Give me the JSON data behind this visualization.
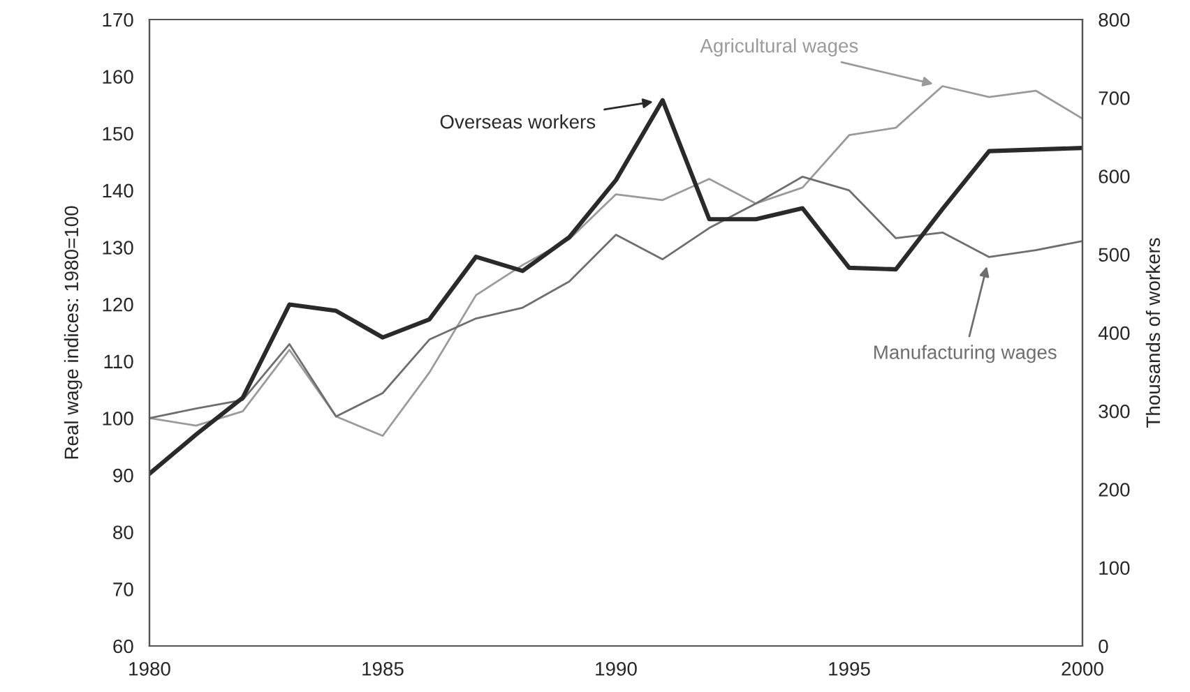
{
  "chart_data": {
    "type": "line",
    "x": [
      1980,
      1981,
      1982,
      1983,
      1984,
      1985,
      1986,
      1987,
      1988,
      1989,
      1990,
      1991,
      1992,
      1993,
      1994,
      1995,
      1996,
      1997,
      1998,
      1999,
      2000
    ],
    "series": [
      {
        "name": "Agricultural wages",
        "color": "#9a9a9a",
        "values": [
          100,
          98.7,
          101.2,
          112,
          100.3,
          96.9,
          108,
          121.6,
          126.9,
          131.4,
          139.3,
          138.3,
          142,
          137.7,
          140.5,
          149.7,
          151,
          158.3,
          156.4,
          157.5,
          152.6
        ]
      },
      {
        "name": "Manufacturing wages",
        "color": "#6e6e6e",
        "values": [
          100,
          101.7,
          103.2,
          113,
          100.3,
          104.4,
          113.8,
          117.5,
          119.4,
          124,
          132.2,
          127.9,
          133.4,
          137.7,
          142.4,
          140,
          131.6,
          132.6,
          128.3,
          129.5,
          131.1
        ]
      },
      {
        "name": "Overseas workers",
        "color": "#2a2a2a",
        "axis": "y2",
        "values": [
          220,
          270,
          317,
          436,
          428,
          394,
          417,
          497,
          479,
          522,
          595,
          697,
          545,
          545,
          559,
          483,
          481,
          558,
          632,
          634,
          636
        ]
      }
    ],
    "xlim": [
      1980,
      2000
    ],
    "xticks": [
      1980,
      1985,
      1990,
      1995,
      2000
    ],
    "ylim": [
      60,
      170
    ],
    "yticks": [
      60,
      70,
      80,
      90,
      100,
      110,
      120,
      130,
      140,
      150,
      160,
      170
    ],
    "y2lim": [
      0,
      800
    ],
    "y2ticks": [
      0,
      100,
      200,
      300,
      400,
      500,
      600,
      700,
      800
    ],
    "ylabel": "Real wage indices: 1980=100",
    "y2label": "Thousands of workers",
    "grid": false,
    "legend": false
  }
}
